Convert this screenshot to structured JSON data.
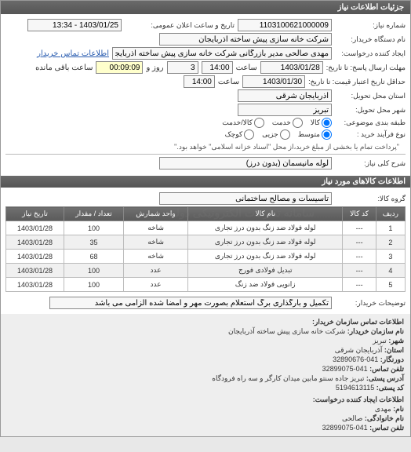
{
  "titlebar": "جزئیات اطلاعات نیاز",
  "fields": {
    "need_no_label": "شماره نیاز:",
    "need_no": "1103100621000009",
    "announce_label": "تاریخ و ساعت اعلان عمومی:",
    "announce": "1403/01/25 - 13:34",
    "buyer_org_label": "نام دستگاه خریدار:",
    "buyer_org": "شرکت خانه سازی پیش ساخته آذربایجان",
    "requester_label": "ایجاد کننده درخواست:",
    "requester": "مهدی صالحی مدیر بازرگانی شرکت خانه سازی پیش ساخته آذربایجان",
    "contact_link": "اطلاعات تماس خریدار",
    "deadline_send_label": "مهلت ارسال پاسخ: تا تاریخ:",
    "deadline_send_date": "1403/01/28",
    "time_lbl": "ساعت",
    "deadline_send_time": "14:00",
    "remain_days": "3",
    "remain_and": "روز و",
    "remain_time": "00:09:09",
    "remain_left": "ساعت باقی مانده",
    "valid_from_label": "حداقل تاریخ اعتبار قیمت: تا تاریخ:",
    "valid_from_date": "1403/01/30",
    "valid_time": "14:00",
    "province_label": "استان محل تحویل:",
    "province": "آذربایجان شرقی",
    "city_label": "شهر محل تحویل:",
    "city": "تبریز",
    "budget_type_label": "طبقه بندی موضوعی:",
    "opt_goods": "کالا",
    "opt_service": "خدمت",
    "opt_goods_service": "کالا/خدمت",
    "process_label": "نوع فرآیند خرید :",
    "opt_small": "کوچک",
    "opt_medium": "متوسط",
    "opt_partial": "جزیی",
    "process_note": "\"پرداخت تمام یا بخشی از مبلغ خرید،از محل \"اسناد خزانه اسلامی\" خواهد بود.\"",
    "need_title_label": "شرح کلی نیاز:",
    "need_title": "لوله مانیسمان (بدون درز)",
    "goods_section": "اطلاعات کالاهای مورد نیاز",
    "group_label": "گروه کالا:",
    "group": "تاسیسات و مصالح ساختمانی"
  },
  "table": {
    "headers": [
      "ردیف",
      "کد کالا",
      "نام کالا",
      "واحد شمارش",
      "تعداد / مقدار",
      "تاریخ نیاز"
    ],
    "rows": [
      [
        "1",
        "---",
        "لوله فولاد ضد زنگ بدون درز تجاری",
        "شاخه",
        "100",
        "1403/01/28"
      ],
      [
        "2",
        "---",
        "لوله فولاد ضد زنگ بدون درز تجاری",
        "شاخه",
        "35",
        "1403/01/28"
      ],
      [
        "3",
        "---",
        "لوله فولاد ضد زنگ بدون درز تجاری",
        "شاخه",
        "68",
        "1403/01/28"
      ],
      [
        "4",
        "---",
        "تبدیل فولادی فورج",
        "عدد",
        "100",
        "1403/01/28"
      ],
      [
        "5",
        "---",
        "زانویی فولاد ضد زنگ",
        "عدد",
        "100",
        "1403/01/28"
      ]
    ],
    "watermark": "سامانه تدارکات الکترونیکی دولت"
  },
  "buyer_notes_label": "توضیحات خریدار:",
  "buyer_notes": "تکمیل و بارگذاری برگ استعلام بصورت مهر و امضا شده الزامی می باشد",
  "contact": {
    "header": "اطلاعات تماس سازمان خریدار:",
    "org_label": "نام سازمان خریدار:",
    "org": "شرکت خانه سازی پیش ساخته آذربایجان",
    "province_label": "شهر:",
    "province": "تبریز",
    "state_label": "استان:",
    "state": "آذربایجان شرقی",
    "fax_label": "دورنگار:",
    "fax": "041-32890676",
    "tel_label": "تلفن تماس:",
    "tel": "041-32899075",
    "addr_label": "آدرس پستی:",
    "addr": "تبریز جاده سنتو مابین میدان کارگر و سه راه فرودگاه",
    "post_label": "کد پستی:",
    "post": "5194613115",
    "creator_header": "اطلاعات ایجاد کننده درخواست:",
    "fname_label": "نام:",
    "fname": "مهدی",
    "lname_label": "نام خانوادگی:",
    "lname": "صالحی",
    "ctel_label": "تلفن تماس:",
    "ctel": "041-32899075"
  }
}
